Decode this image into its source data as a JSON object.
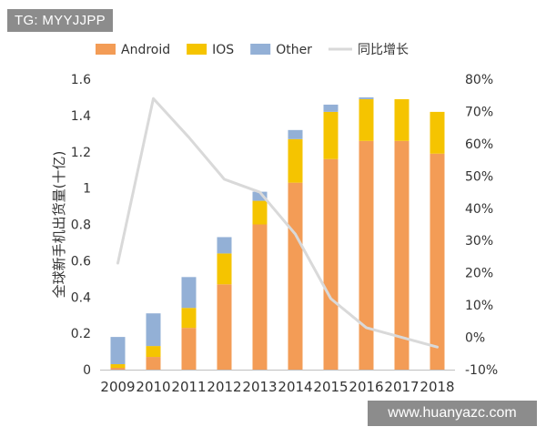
{
  "watermark_top": "TG: MYYJJPP",
  "watermark_bottom": "www.huanyazc.com",
  "chart_data": {
    "type": "bar",
    "stacked": true,
    "categories": [
      "2009",
      "2010",
      "2011",
      "2012",
      "2013",
      "2014",
      "2015",
      "2016",
      "2017",
      "2018"
    ],
    "series": [
      {
        "name": "Android",
        "color": "#f39c56",
        "values": [
          0.01,
          0.07,
          0.23,
          0.47,
          0.8,
          1.03,
          1.16,
          1.26,
          1.26,
          1.19
        ]
      },
      {
        "name": "IOS",
        "color": "#f5c400",
        "values": [
          0.02,
          0.06,
          0.11,
          0.17,
          0.13,
          0.24,
          0.26,
          0.23,
          0.23,
          0.23
        ]
      },
      {
        "name": "Other",
        "color": "#93b0d6",
        "values": [
          0.15,
          0.18,
          0.17,
          0.09,
          0.05,
          0.05,
          0.04,
          0.01,
          0.0,
          0.0
        ]
      }
    ],
    "line": {
      "name": "同比增长",
      "color": "#d9d9d9",
      "axis": "right",
      "values": [
        23,
        74,
        62,
        49,
        45,
        32,
        12,
        3,
        0,
        -3
      ]
    },
    "ylabel": "全球新手机出货量(十亿)",
    "ylim": [
      0,
      1.6
    ],
    "yticks": [
      "0",
      "0.2",
      "0.4",
      "0.6",
      "0.8",
      "1",
      "1.2",
      "1.4",
      "1.6"
    ],
    "y2lim": [
      -10,
      80
    ],
    "y2ticks": [
      "-10%",
      "0%",
      "10%",
      "20%",
      "30%",
      "40%",
      "50%",
      "60%",
      "70%",
      "80%"
    ],
    "legend_position": "top",
    "grid": false
  }
}
